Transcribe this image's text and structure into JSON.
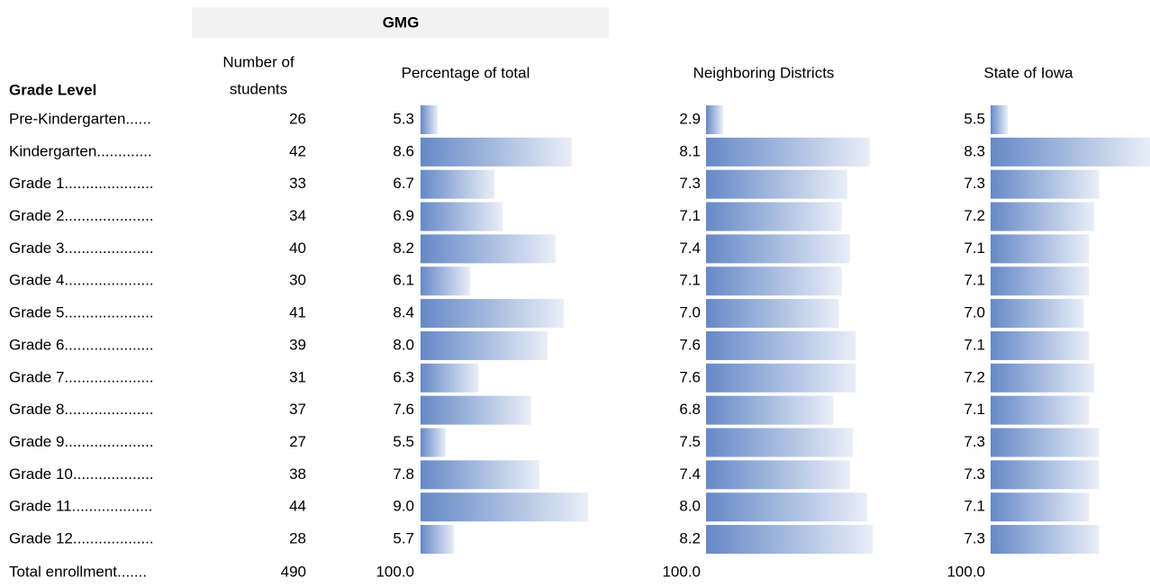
{
  "header": {
    "group": "GMG",
    "grade_level": "Grade Level",
    "number_of_students": [
      "Number of",
      "students"
    ],
    "percentage": "Percentage of total",
    "neighboring": "Neighboring Districts",
    "state": "State of Iowa"
  },
  "table": {
    "rows": [
      [
        "Pre-Kindergarten......",
        "26",
        "5.3",
        "2.9",
        "5.5"
      ],
      [
        "Kindergarten.............",
        "42",
        "8.6",
        "8.1",
        "8.3"
      ],
      [
        "Grade 1.....................",
        "33",
        "6.7",
        "7.3",
        "7.3"
      ],
      [
        "Grade 2.....................",
        "34",
        "6.9",
        "7.1",
        "7.2"
      ],
      [
        "Grade 3.....................",
        "40",
        "8.2",
        "7.4",
        "7.1"
      ],
      [
        "Grade 4.....................",
        "30",
        "6.1",
        "7.1",
        "7.1"
      ],
      [
        "Grade 5.....................",
        "41",
        "8.4",
        "7.0",
        "7.0"
      ],
      [
        "Grade 6.....................",
        "39",
        "8.0",
        "7.6",
        "7.1"
      ],
      [
        "Grade 7.....................",
        "31",
        "6.3",
        "7.6",
        "7.2"
      ],
      [
        "Grade 8.....................",
        "37",
        "7.6",
        "6.8",
        "7.1"
      ],
      [
        "Grade 9.....................",
        "27",
        "5.5",
        "7.5",
        "7.3"
      ],
      [
        "Grade 10...................",
        "38",
        "7.8",
        "7.4",
        "7.3"
      ],
      [
        "Grade 11...................",
        "44",
        "9.0",
        "8.0",
        "7.1"
      ],
      [
        "Grade 12...................",
        "28",
        "5.7",
        "8.2",
        "7.3"
      ]
    ],
    "total": [
      "Total enrollment.......",
      "490",
      "100.0",
      "100.0",
      "100.0"
    ]
  }
}
